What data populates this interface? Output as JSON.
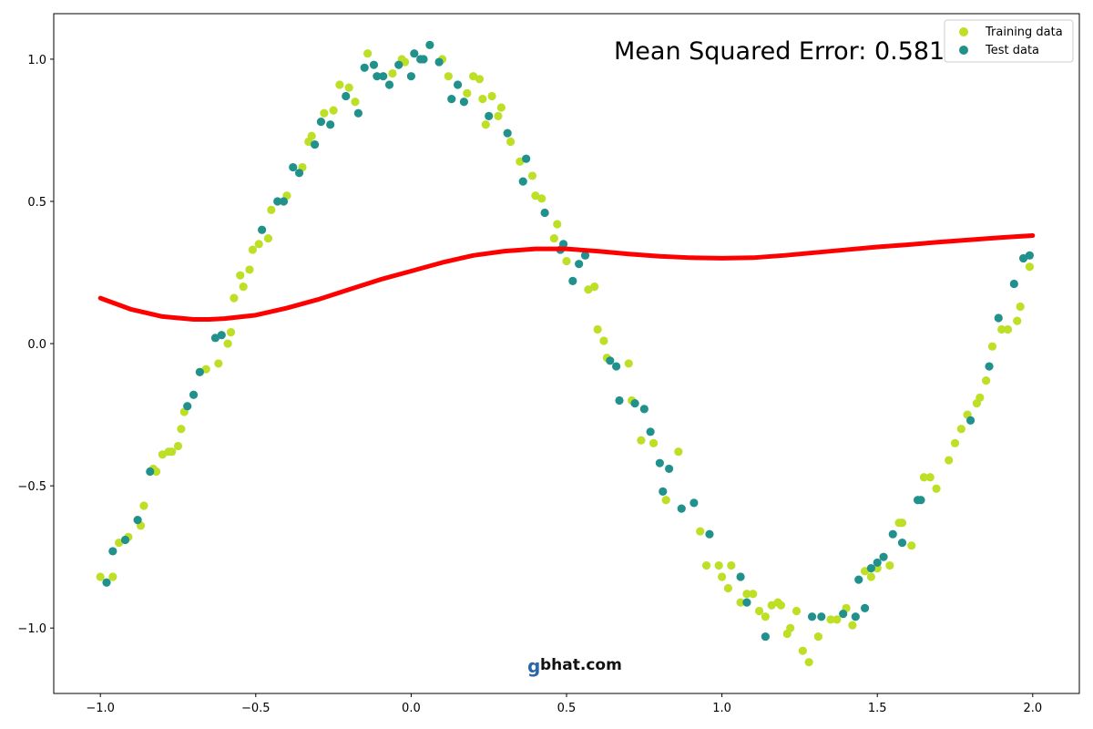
{
  "chart_data": {
    "type": "scatter",
    "title": "",
    "xlabel": "",
    "ylabel": "",
    "xlim": [
      -1.15,
      2.15
    ],
    "ylim": [
      -1.23,
      1.16
    ],
    "grid": false,
    "legend_position": "top-right",
    "x_ticks": [
      -1.0,
      -0.5,
      0.0,
      0.5,
      1.0,
      1.5,
      2.0
    ],
    "x_tick_labels": [
      "−1.0",
      "−0.5",
      "0.0",
      "0.5",
      "1.0",
      "1.5",
      "2.0"
    ],
    "y_ticks": [
      1.0,
      0.5,
      0.0,
      -0.5,
      -1.0
    ],
    "y_tick_labels": [
      "1.0",
      "0.5",
      "0.0",
      "−0.5",
      "−1.0"
    ],
    "annotation": "Mean Squared Error: 0.581",
    "watermark": "gbhat.com",
    "series": [
      {
        "name": "Training data",
        "kind": "scatter",
        "color": "#bddf26",
        "points": [
          [
            -1.0,
            -0.82
          ],
          [
            -0.96,
            -0.82
          ],
          [
            -0.94,
            -0.7
          ],
          [
            -0.91,
            -0.68
          ],
          [
            -0.87,
            -0.64
          ],
          [
            -0.86,
            -0.57
          ],
          [
            -0.83,
            -0.44
          ],
          [
            -0.82,
            -0.45
          ],
          [
            -0.8,
            -0.39
          ],
          [
            -0.78,
            -0.38
          ],
          [
            -0.77,
            -0.38
          ],
          [
            -0.75,
            -0.36
          ],
          [
            -0.74,
            -0.3
          ],
          [
            -0.73,
            -0.24
          ],
          [
            -0.68,
            -0.1
          ],
          [
            -0.66,
            -0.09
          ],
          [
            -0.62,
            -0.07
          ],
          [
            -0.59,
            0.0
          ],
          [
            -0.58,
            0.04
          ],
          [
            -0.57,
            0.16
          ],
          [
            -0.55,
            0.24
          ],
          [
            -0.54,
            0.2
          ],
          [
            -0.52,
            0.26
          ],
          [
            -0.51,
            0.33
          ],
          [
            -0.49,
            0.35
          ],
          [
            -0.46,
            0.37
          ],
          [
            -0.45,
            0.47
          ],
          [
            -0.4,
            0.52
          ],
          [
            -0.35,
            0.62
          ],
          [
            -0.33,
            0.71
          ],
          [
            -0.32,
            0.73
          ],
          [
            -0.28,
            0.81
          ],
          [
            -0.25,
            0.82
          ],
          [
            -0.23,
            0.91
          ],
          [
            -0.2,
            0.9
          ],
          [
            -0.18,
            0.85
          ],
          [
            -0.14,
            1.02
          ],
          [
            -0.06,
            0.95
          ],
          [
            -0.03,
            1.0
          ],
          [
            -0.02,
            0.99
          ],
          [
            0.1,
            1.0
          ],
          [
            0.12,
            0.94
          ],
          [
            0.18,
            0.88
          ],
          [
            0.2,
            0.94
          ],
          [
            0.22,
            0.93
          ],
          [
            0.23,
            0.86
          ],
          [
            0.24,
            0.77
          ],
          [
            0.26,
            0.87
          ],
          [
            0.28,
            0.8
          ],
          [
            0.29,
            0.83
          ],
          [
            0.32,
            0.71
          ],
          [
            0.35,
            0.64
          ],
          [
            0.39,
            0.59
          ],
          [
            0.4,
            0.52
          ],
          [
            0.42,
            0.51
          ],
          [
            0.46,
            0.37
          ],
          [
            0.47,
            0.42
          ],
          [
            0.5,
            0.29
          ],
          [
            0.57,
            0.19
          ],
          [
            0.59,
            0.2
          ],
          [
            0.6,
            0.05
          ],
          [
            0.62,
            0.01
          ],
          [
            0.63,
            -0.05
          ],
          [
            0.7,
            -0.07
          ],
          [
            0.71,
            -0.2
          ],
          [
            0.74,
            -0.34
          ],
          [
            0.78,
            -0.35
          ],
          [
            0.86,
            -0.38
          ],
          [
            0.82,
            -0.55
          ],
          [
            0.93,
            -0.66
          ],
          [
            0.95,
            -0.78
          ],
          [
            0.99,
            -0.78
          ],
          [
            1.0,
            -0.82
          ],
          [
            1.02,
            -0.86
          ],
          [
            1.03,
            -0.78
          ],
          [
            1.06,
            -0.91
          ],
          [
            1.08,
            -0.88
          ],
          [
            1.1,
            -0.88
          ],
          [
            1.12,
            -0.94
          ],
          [
            1.14,
            -0.96
          ],
          [
            1.16,
            -0.92
          ],
          [
            1.18,
            -0.91
          ],
          [
            1.19,
            -0.92
          ],
          [
            1.21,
            -1.02
          ],
          [
            1.22,
            -1.0
          ],
          [
            1.24,
            -0.94
          ],
          [
            1.26,
            -1.08
          ],
          [
            1.28,
            -1.12
          ],
          [
            1.31,
            -1.03
          ],
          [
            1.35,
            -0.97
          ],
          [
            1.37,
            -0.97
          ],
          [
            1.4,
            -0.93
          ],
          [
            1.42,
            -0.99
          ],
          [
            1.46,
            -0.8
          ],
          [
            1.48,
            -0.82
          ],
          [
            1.5,
            -0.79
          ],
          [
            1.54,
            -0.78
          ],
          [
            1.57,
            -0.63
          ],
          [
            1.58,
            -0.63
          ],
          [
            1.61,
            -0.71
          ],
          [
            1.65,
            -0.47
          ],
          [
            1.67,
            -0.47
          ],
          [
            1.69,
            -0.51
          ],
          [
            1.73,
            -0.41
          ],
          [
            1.75,
            -0.35
          ],
          [
            1.77,
            -0.3
          ],
          [
            1.79,
            -0.25
          ],
          [
            1.82,
            -0.21
          ],
          [
            1.83,
            -0.19
          ],
          [
            1.85,
            -0.13
          ],
          [
            1.87,
            -0.01
          ],
          [
            1.9,
            0.05
          ],
          [
            1.92,
            0.05
          ],
          [
            1.95,
            0.08
          ],
          [
            1.96,
            0.13
          ],
          [
            1.99,
            0.27
          ]
        ]
      },
      {
        "name": "Test data",
        "kind": "scatter",
        "color": "#21918c",
        "points": [
          [
            -0.98,
            -0.84
          ],
          [
            -0.96,
            -0.73
          ],
          [
            -0.92,
            -0.69
          ],
          [
            -0.88,
            -0.62
          ],
          [
            -0.84,
            -0.45
          ],
          [
            -0.72,
            -0.22
          ],
          [
            -0.7,
            -0.18
          ],
          [
            -0.68,
            -0.1
          ],
          [
            -0.63,
            0.02
          ],
          [
            -0.61,
            0.03
          ],
          [
            -0.48,
            0.4
          ],
          [
            -0.43,
            0.5
          ],
          [
            -0.41,
            0.5
          ],
          [
            -0.38,
            0.62
          ],
          [
            -0.36,
            0.6
          ],
          [
            -0.31,
            0.7
          ],
          [
            -0.29,
            0.78
          ],
          [
            -0.26,
            0.77
          ],
          [
            -0.21,
            0.87
          ],
          [
            -0.17,
            0.81
          ],
          [
            -0.15,
            0.97
          ],
          [
            -0.12,
            0.98
          ],
          [
            -0.11,
            0.94
          ],
          [
            -0.09,
            0.94
          ],
          [
            -0.07,
            0.91
          ],
          [
            -0.04,
            0.98
          ],
          [
            0.0,
            0.94
          ],
          [
            0.01,
            1.02
          ],
          [
            0.03,
            1.0
          ],
          [
            0.04,
            1.0
          ],
          [
            0.06,
            1.05
          ],
          [
            0.09,
            0.99
          ],
          [
            0.13,
            0.86
          ],
          [
            0.15,
            0.91
          ],
          [
            0.17,
            0.85
          ],
          [
            0.25,
            0.8
          ],
          [
            0.31,
            0.74
          ],
          [
            0.36,
            0.57
          ],
          [
            0.37,
            0.65
          ],
          [
            0.43,
            0.46
          ],
          [
            0.48,
            0.33
          ],
          [
            0.49,
            0.35
          ],
          [
            0.52,
            0.22
          ],
          [
            0.54,
            0.28
          ],
          [
            0.56,
            0.31
          ],
          [
            0.64,
            -0.06
          ],
          [
            0.66,
            -0.08
          ],
          [
            0.67,
            -0.2
          ],
          [
            0.72,
            -0.21
          ],
          [
            0.75,
            -0.23
          ],
          [
            0.77,
            -0.31
          ],
          [
            0.8,
            -0.42
          ],
          [
            0.81,
            -0.52
          ],
          [
            0.83,
            -0.44
          ],
          [
            0.87,
            -0.58
          ],
          [
            0.91,
            -0.56
          ],
          [
            0.96,
            -0.67
          ],
          [
            1.06,
            -0.82
          ],
          [
            1.08,
            -0.91
          ],
          [
            1.14,
            -1.03
          ],
          [
            1.29,
            -0.96
          ],
          [
            1.32,
            -0.96
          ],
          [
            1.39,
            -0.95
          ],
          [
            1.43,
            -0.96
          ],
          [
            1.44,
            -0.83
          ],
          [
            1.46,
            -0.93
          ],
          [
            1.48,
            -0.79
          ],
          [
            1.5,
            -0.77
          ],
          [
            1.52,
            -0.75
          ],
          [
            1.55,
            -0.67
          ],
          [
            1.58,
            -0.7
          ],
          [
            1.63,
            -0.55
          ],
          [
            1.64,
            -0.55
          ],
          [
            1.8,
            -0.27
          ],
          [
            1.86,
            -0.08
          ],
          [
            1.89,
            0.09
          ],
          [
            1.94,
            0.21
          ],
          [
            1.97,
            0.3
          ],
          [
            1.99,
            0.31
          ]
        ]
      },
      {
        "name": "",
        "kind": "line",
        "color": "#ff0000",
        "points": [
          [
            -1.0,
            0.16
          ],
          [
            -0.9,
            0.12
          ],
          [
            -0.8,
            0.095
          ],
          [
            -0.7,
            0.085
          ],
          [
            -0.65,
            0.085
          ],
          [
            -0.6,
            0.088
          ],
          [
            -0.5,
            0.1
          ],
          [
            -0.4,
            0.125
          ],
          [
            -0.3,
            0.155
          ],
          [
            -0.2,
            0.19
          ],
          [
            -0.1,
            0.225
          ],
          [
            0.0,
            0.255
          ],
          [
            0.1,
            0.285
          ],
          [
            0.2,
            0.31
          ],
          [
            0.3,
            0.325
          ],
          [
            0.4,
            0.333
          ],
          [
            0.5,
            0.333
          ],
          [
            0.6,
            0.325
          ],
          [
            0.7,
            0.315
          ],
          [
            0.8,
            0.307
          ],
          [
            0.9,
            0.302
          ],
          [
            1.0,
            0.3
          ],
          [
            1.1,
            0.302
          ],
          [
            1.2,
            0.31
          ],
          [
            1.3,
            0.32
          ],
          [
            1.4,
            0.33
          ],
          [
            1.5,
            0.34
          ],
          [
            1.6,
            0.348
          ],
          [
            1.7,
            0.357
          ],
          [
            1.8,
            0.365
          ],
          [
            1.9,
            0.373
          ],
          [
            2.0,
            0.38
          ]
        ]
      }
    ]
  }
}
